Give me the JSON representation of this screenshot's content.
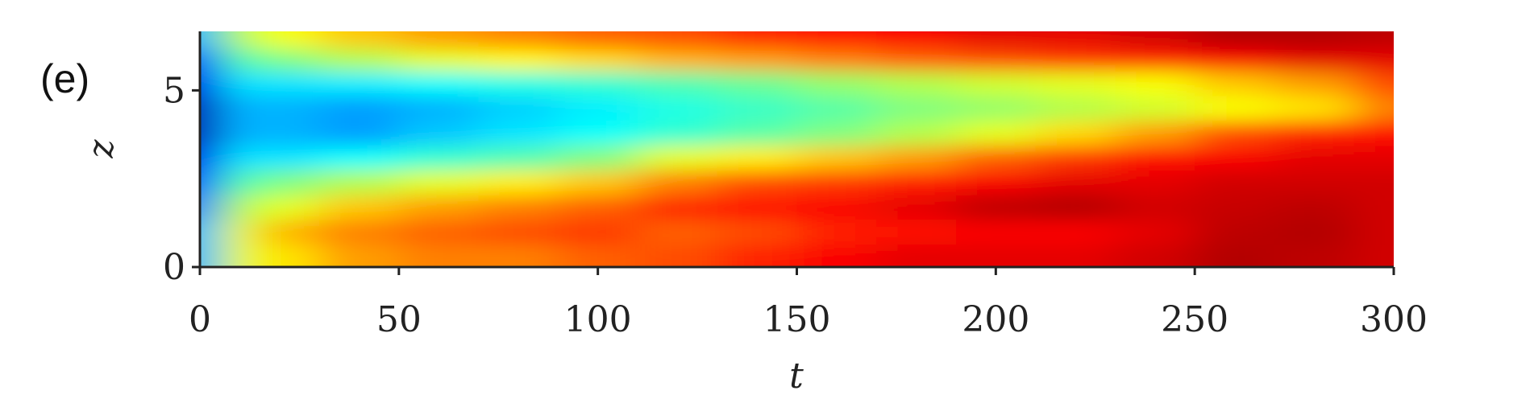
{
  "chart_data": {
    "type": "heatmap",
    "panel_label": "(e)",
    "xlabel": "t",
    "ylabel": "z",
    "colormap": "jet",
    "xlim": [
      0,
      300
    ],
    "ylim": [
      0,
      6.67
    ],
    "xticks": [
      0,
      50,
      100,
      150,
      200,
      250,
      300
    ],
    "yticks": [
      0,
      5
    ],
    "x": [
      0,
      10,
      20,
      40,
      60,
      80,
      100,
      120,
      140,
      160,
      180,
      200,
      220,
      240,
      260,
      280,
      300
    ],
    "y": [
      0.3,
      1.0,
      1.7,
      2.4,
      3.1,
      3.8,
      4.5,
      5.2,
      5.9,
      6.5
    ],
    "values": [
      [
        0.3,
        0.3,
        0.25,
        0.2,
        0.1,
        0.05,
        0.05,
        0.1,
        0.2,
        0.3
      ],
      [
        0.6,
        0.6,
        0.55,
        0.45,
        0.35,
        0.3,
        0.3,
        0.35,
        0.45,
        0.55
      ],
      [
        0.65,
        0.7,
        0.6,
        0.5,
        0.35,
        0.3,
        0.3,
        0.35,
        0.5,
        0.62
      ],
      [
        0.72,
        0.75,
        0.68,
        0.55,
        0.38,
        0.28,
        0.28,
        0.36,
        0.55,
        0.68
      ],
      [
        0.75,
        0.78,
        0.72,
        0.6,
        0.42,
        0.32,
        0.3,
        0.38,
        0.6,
        0.72
      ],
      [
        0.75,
        0.8,
        0.75,
        0.64,
        0.45,
        0.35,
        0.33,
        0.4,
        0.63,
        0.75
      ],
      [
        0.78,
        0.82,
        0.78,
        0.68,
        0.5,
        0.38,
        0.36,
        0.42,
        0.66,
        0.78
      ],
      [
        0.8,
        0.78,
        0.84,
        0.75,
        0.6,
        0.42,
        0.4,
        0.45,
        0.7,
        0.8
      ],
      [
        0.84,
        0.8,
        0.86,
        0.8,
        0.64,
        0.46,
        0.43,
        0.48,
        0.72,
        0.84
      ],
      [
        0.88,
        0.84,
        0.88,
        0.82,
        0.68,
        0.5,
        0.46,
        0.52,
        0.75,
        0.86
      ],
      [
        0.9,
        0.86,
        0.9,
        0.85,
        0.72,
        0.55,
        0.5,
        0.55,
        0.78,
        0.88
      ],
      [
        0.9,
        0.88,
        0.94,
        0.88,
        0.78,
        0.6,
        0.52,
        0.58,
        0.8,
        0.9
      ],
      [
        0.9,
        0.88,
        0.95,
        0.9,
        0.82,
        0.66,
        0.55,
        0.6,
        0.82,
        0.9
      ],
      [
        0.92,
        0.9,
        0.92,
        0.9,
        0.86,
        0.72,
        0.58,
        0.62,
        0.84,
        0.92
      ],
      [
        0.95,
        0.94,
        0.93,
        0.92,
        0.88,
        0.8,
        0.62,
        0.68,
        0.88,
        0.95
      ],
      [
        0.94,
        0.95,
        0.94,
        0.92,
        0.9,
        0.84,
        0.65,
        0.72,
        0.9,
        0.95
      ],
      [
        0.92,
        0.92,
        0.92,
        0.92,
        0.9,
        0.86,
        0.75,
        0.8,
        0.9,
        0.94
      ]
    ]
  }
}
